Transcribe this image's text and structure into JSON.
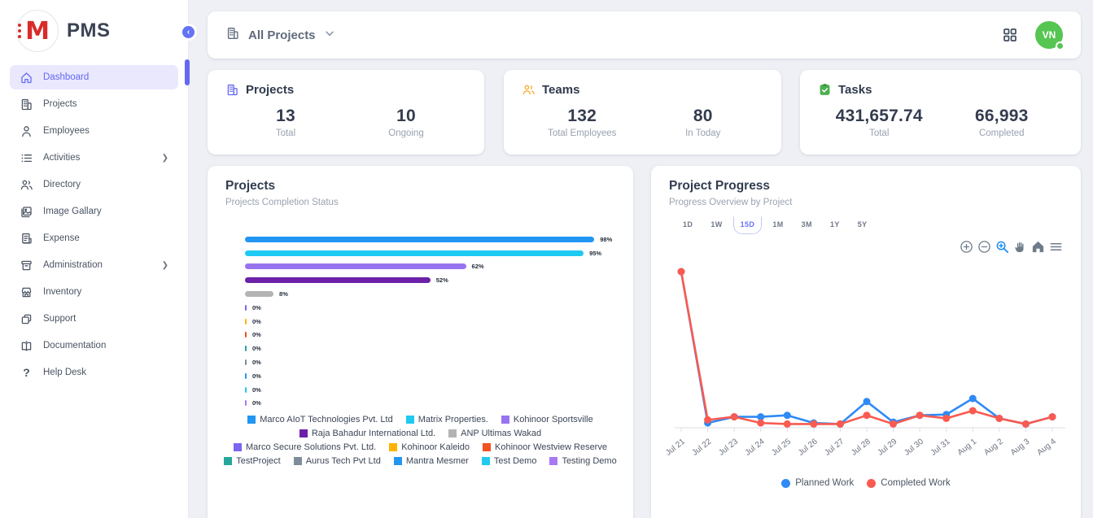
{
  "app": {
    "logo_letter": "M",
    "title": "PMS"
  },
  "sidebar": {
    "items": [
      {
        "label": "Dashboard",
        "icon": "home-icon",
        "active": true,
        "has_submenu": false
      },
      {
        "label": "Projects",
        "icon": "building-icon",
        "active": false,
        "has_submenu": false
      },
      {
        "label": "Employees",
        "icon": "person-icon",
        "active": false,
        "has_submenu": false
      },
      {
        "label": "Activities",
        "icon": "list-icon",
        "active": false,
        "has_submenu": true
      },
      {
        "label": "Directory",
        "icon": "people-icon",
        "active": false,
        "has_submenu": false
      },
      {
        "label": "Image Gallary",
        "icon": "image-icon",
        "active": false,
        "has_submenu": false
      },
      {
        "label": "Expense",
        "icon": "receipt-icon",
        "active": false,
        "has_submenu": false
      },
      {
        "label": "Administration",
        "icon": "archive-icon",
        "active": false,
        "has_submenu": true
      },
      {
        "label": "Inventory",
        "icon": "storefront-icon",
        "active": false,
        "has_submenu": false
      },
      {
        "label": "Support",
        "icon": "copy-icon",
        "active": false,
        "has_submenu": false
      },
      {
        "label": "Documentation",
        "icon": "book-icon",
        "active": false,
        "has_submenu": false
      },
      {
        "label": "Help Desk",
        "icon": "question-icon",
        "active": false,
        "has_submenu": false
      }
    ]
  },
  "topbar": {
    "project_filter_label": "All Projects",
    "avatar_initials": "VN",
    "avatar_color": "#56c552"
  },
  "stats": {
    "cards": [
      {
        "title": "Projects",
        "icon": "building-icon",
        "accent": "#6366f1",
        "metrics": [
          {
            "value": "13",
            "label": "Total"
          },
          {
            "value": "10",
            "label": "Ongoing"
          }
        ]
      },
      {
        "title": "Teams",
        "icon": "people-icon",
        "accent": "#f6a821",
        "metrics": [
          {
            "value": "132",
            "label": "Total Employees"
          },
          {
            "value": "80",
            "label": "In Today"
          }
        ]
      },
      {
        "title": "Tasks",
        "icon": "task-check-icon",
        "accent": "#4caf50",
        "metrics": [
          {
            "value": "431,657.74",
            "label": "Total"
          },
          {
            "value": "66,993",
            "label": "Completed"
          }
        ]
      }
    ]
  },
  "projects_panel": {
    "title": "Projects",
    "subtitle": "Projects Completion Status"
  },
  "progress_panel": {
    "title": "Project Progress",
    "subtitle": "Progress Overview by Project",
    "ranges": [
      "1D",
      "1W",
      "15D",
      "1M",
      "3M",
      "1Y",
      "5Y"
    ],
    "selected_range": "15D",
    "toolbar_icons": [
      "zoom-in-icon",
      "zoom-out-icon",
      "selection-zoom-icon",
      "pan-icon",
      "home-icon",
      "menu-icon"
    ]
  },
  "chart_data": [
    {
      "type": "bar",
      "orientation": "horizontal",
      "title": "Projects",
      "subtitle": "Projects Completion Status",
      "unit": "%",
      "xlim": [
        0,
        100
      ],
      "grid": false,
      "legend_position": "bottom",
      "categories": [
        "Marco AIoT Technologies Pvt. Ltd",
        "Matrix Properties.",
        "Kohinoor Sportsville",
        "Raja Bahadur International Ltd.",
        "ANP Ultimas Wakad",
        "Marco Secure Solutions Pvt. Ltd.",
        "Kohinoor Kaleido",
        "Kohinoor Westview Reserve",
        "TestProject",
        "Aurus Tech Pvt Ltd",
        "Mantra Mesmer",
        "Test Demo",
        "Testing Demo"
      ],
      "values": [
        98,
        95,
        62,
        52,
        8,
        0,
        0,
        0,
        0,
        0,
        0,
        0,
        0
      ],
      "colors": [
        "#2196f3",
        "#1ec9f2",
        "#9873f0",
        "#6c21a8",
        "#b3b3b3",
        "#7c66ee",
        "#ffb300",
        "#f4511e",
        "#26a69a",
        "#7f8c9a",
        "#2196f3",
        "#22c9f0",
        "#a879f4"
      ],
      "legend_rows": [
        [
          0,
          1,
          2
        ],
        [
          3,
          4
        ],
        [
          5,
          6,
          7
        ],
        [
          8,
          9,
          10,
          11,
          12
        ]
      ]
    },
    {
      "type": "line",
      "title": "Project Progress",
      "x": [
        "Jul 21",
        "Jul 22",
        "Jul 23",
        "Jul 24",
        "Jul 25",
        "Jul 26",
        "Jul 27",
        "Jul 28",
        "Jul 29",
        "Jul 30",
        "Jul 31",
        "Aug 1",
        "Aug 2",
        "Aug 3",
        "Aug 4"
      ],
      "series": [
        {
          "name": "Planned Work",
          "color": "#2f8af5",
          "values": [
            100,
            1,
            5,
            5,
            6,
            1,
            0.3,
            15,
            1.5,
            6,
            6.5,
            17,
            4,
            0.3,
            5
          ]
        },
        {
          "name": "Completed Work",
          "color": "#fa5a50",
          "values": [
            100,
            3,
            5,
            1,
            0.3,
            0.3,
            0.3,
            6,
            0.3,
            6,
            4,
            9,
            4,
            0.3,
            5
          ]
        }
      ],
      "ylim": [
        0,
        100
      ],
      "y_axis_visible": false,
      "grid": false,
      "legend_position": "bottom"
    }
  ]
}
